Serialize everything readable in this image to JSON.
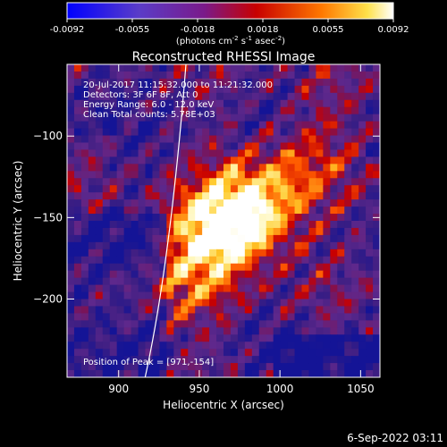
{
  "colorbar": {
    "ticks": [
      "-0.0092",
      "-0.0055",
      "-0.0018",
      "0.0018",
      "0.0055",
      "0.0092"
    ],
    "units_main": "(photons cm",
    "units_sup1": "-2",
    "units_mid1": " s",
    "units_sup2": "-1",
    "units_mid2": " asec",
    "units_sup3": "-2",
    "units_end": ")"
  },
  "annotations": {
    "time": "20-Jul-2017 11:15:32.000 to 11:21:32.000",
    "detectors": "Detectors: 3F 6F 8F, Att 0",
    "energy": "Energy Range: 6.0 - 12.0 keV",
    "clean": "Clean     Total counts: 5.78E+03",
    "peak": "Position of Peak = [971,-154]"
  },
  "footer": {
    "date": "6-Sep-2022 03:11"
  },
  "chart_data": {
    "type": "heatmap",
    "title": "Reconstructed RHESSI Image",
    "xlabel": "Heliocentric X (arcsec)",
    "ylabel": "Heliocentric Y (arcsec)",
    "xlim": [
      868,
      1062
    ],
    "ylim": [
      -248,
      -56
    ],
    "x_ticks": [
      "900",
      "950",
      "1000",
      "1050"
    ],
    "y_ticks": [
      "-100",
      "-150",
      "-200"
    ],
    "colormap": "hot-blue",
    "value_range": [
      -0.0092,
      0.0092
    ],
    "peak": [
      971,
      -154
    ],
    "limb": true
  }
}
